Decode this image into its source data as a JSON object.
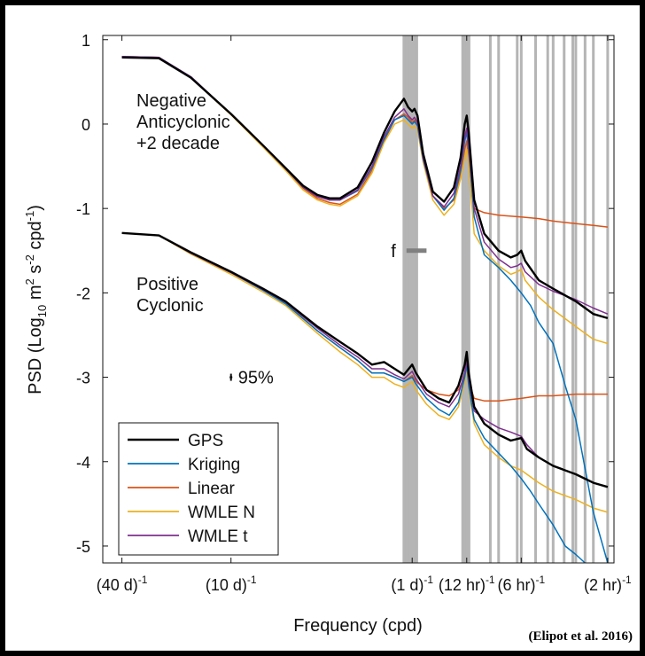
{
  "chart_data": {
    "type": "line",
    "ylabel_parts": {
      "a": "PSD (Log",
      "sub": "10",
      "b": " m",
      "sup1": "2",
      "c": " s",
      "sup2": "-2",
      "d": " cpd",
      "sup3": "-1",
      "e": ")"
    },
    "xlabel": "Frequency (cpd)",
    "credit": "(Elipot et al. 2016)",
    "x_scale": "log",
    "xlim": [
      0.0196,
      13.0
    ],
    "ylim": [
      -5.2,
      1.05
    ],
    "grid": false,
    "legend_placement": "bottom-left",
    "x_ticks": [
      {
        "value": 0.025,
        "label": "(40 d)",
        "sup": "-1"
      },
      {
        "value": 0.1,
        "label": "(10 d)",
        "sup": "-1"
      },
      {
        "value": 1.0,
        "label": "(1 d)",
        "sup": "-1"
      },
      {
        "value": 2.0,
        "label": "(12 hr)",
        "sup": "-1"
      },
      {
        "value": 4.0,
        "label": "(6 hr)",
        "sup": "-1"
      },
      {
        "value": 12.0,
        "label": "(2 hr)",
        "sup": "-1"
      }
    ],
    "y_ticks": [
      {
        "value": 1,
        "label": "1"
      },
      {
        "value": 0,
        "label": "0"
      },
      {
        "value": -1,
        "label": "-1"
      },
      {
        "value": -2,
        "label": "-2"
      },
      {
        "value": -3,
        "label": "-3"
      },
      {
        "value": -4,
        "label": "-4"
      },
      {
        "value": -5,
        "label": "-5"
      }
    ],
    "annotations": {
      "upper_group": [
        "Negative",
        "Anticyclonic",
        "+2 decade"
      ],
      "lower_group": [
        "Positive",
        "Cyclonic"
      ],
      "f_label": "f",
      "f_bar_range": [
        0.93,
        1.2
      ],
      "f_bar_y": -1.5,
      "ci_label": "95%",
      "ci_x": 0.1,
      "ci_y": -3.0
    },
    "tidal_bands": [
      0.9,
      0.92,
      0.93,
      0.95,
      0.97,
      0.99,
      1.0,
      1.03,
      1.06,
      1.9,
      1.93,
      1.96,
      2.0,
      2.03,
      2.06,
      2.7,
      3.0,
      3.8,
      4.0,
      4.8,
      5.6,
      6.0,
      6.9,
      7.7,
      8.0,
      9.0,
      10.0,
      12.0
    ],
    "colors": {
      "GPS": "#000000",
      "Kriging": "#0072BD",
      "Linear": "#D95319",
      "WMLE N": "#EDB120",
      "WMLE t": "#7E2F8E",
      "band": "#b5b5b5",
      "f_bar": "#808080"
    },
    "series": [
      {
        "name": "GPS",
        "group": "upper",
        "x": [
          0.025,
          0.04,
          0.06,
          0.1,
          0.15,
          0.2,
          0.25,
          0.3,
          0.35,
          0.4,
          0.5,
          0.6,
          0.7,
          0.8,
          0.9,
          0.95,
          1.0,
          1.03,
          1.07,
          1.15,
          1.3,
          1.5,
          1.7,
          1.85,
          1.95,
          2.0,
          2.05,
          2.2,
          2.5,
          3.0,
          3.5,
          3.8,
          4.0,
          4.2,
          5.0,
          6.0,
          8.0,
          10.0,
          12.0
        ],
        "y": [
          0.79,
          0.78,
          0.55,
          0.12,
          -0.25,
          -0.52,
          -0.73,
          -0.84,
          -0.88,
          -0.88,
          -0.75,
          -0.45,
          -0.1,
          0.15,
          0.3,
          0.2,
          0.15,
          0.18,
          0.1,
          -0.35,
          -0.8,
          -0.92,
          -0.75,
          -0.4,
          0.0,
          0.1,
          -0.1,
          -0.9,
          -1.3,
          -1.5,
          -1.58,
          -1.55,
          -1.5,
          -1.62,
          -1.85,
          -1.95,
          -2.1,
          -2.25,
          -2.3
        ]
      },
      {
        "name": "Kriging",
        "group": "upper",
        "x": [
          0.025,
          0.04,
          0.06,
          0.1,
          0.15,
          0.2,
          0.25,
          0.3,
          0.35,
          0.4,
          0.5,
          0.6,
          0.7,
          0.8,
          0.9,
          0.95,
          1.0,
          1.03,
          1.07,
          1.15,
          1.3,
          1.5,
          1.7,
          1.85,
          1.95,
          2.0,
          2.05,
          2.2,
          2.5,
          3.0,
          3.5,
          4.0,
          4.5,
          5.0,
          6.0,
          7.0,
          8.0,
          10.0,
          12.0
        ],
        "y": [
          0.8,
          0.79,
          0.56,
          0.12,
          -0.25,
          -0.53,
          -0.75,
          -0.86,
          -0.9,
          -0.9,
          -0.79,
          -0.52,
          -0.18,
          0.05,
          0.1,
          0.05,
          0.0,
          0.03,
          -0.02,
          -0.42,
          -0.85,
          -1.02,
          -0.88,
          -0.55,
          -0.2,
          -0.1,
          -0.3,
          -1.1,
          -1.55,
          -1.7,
          -1.85,
          -2.0,
          -2.15,
          -2.35,
          -2.6,
          -3.1,
          -3.5,
          -4.6,
          -5.2
        ]
      },
      {
        "name": "Linear",
        "group": "upper",
        "x": [
          0.025,
          0.04,
          0.06,
          0.1,
          0.15,
          0.2,
          0.25,
          0.3,
          0.35,
          0.4,
          0.5,
          0.6,
          0.7,
          0.8,
          0.9,
          0.95,
          1.0,
          1.03,
          1.07,
          1.15,
          1.3,
          1.5,
          1.7,
          1.85,
          1.95,
          2.0,
          2.05,
          2.2,
          2.5,
          3.0,
          4.0,
          5.0,
          6.0,
          8.0,
          10.0,
          12.0
        ],
        "y": [
          0.8,
          0.79,
          0.56,
          0.12,
          -0.25,
          -0.53,
          -0.76,
          -0.88,
          -0.93,
          -0.95,
          -0.83,
          -0.55,
          -0.2,
          0.05,
          0.12,
          0.08,
          0.02,
          0.05,
          0.0,
          -0.4,
          -0.85,
          -1.0,
          -0.9,
          -0.6,
          -0.3,
          -0.2,
          -0.4,
          -1.0,
          -1.05,
          -1.08,
          -1.1,
          -1.12,
          -1.15,
          -1.18,
          -1.2,
          -1.22
        ]
      },
      {
        "name": "WMLE N",
        "group": "upper",
        "x": [
          0.025,
          0.04,
          0.06,
          0.1,
          0.15,
          0.2,
          0.25,
          0.3,
          0.35,
          0.4,
          0.5,
          0.6,
          0.7,
          0.8,
          0.9,
          0.95,
          1.0,
          1.03,
          1.07,
          1.15,
          1.3,
          1.5,
          1.7,
          1.85,
          1.95,
          2.0,
          2.05,
          2.2,
          2.5,
          3.0,
          3.5,
          3.8,
          4.0,
          4.2,
          5.0,
          6.0,
          8.0,
          10.0,
          12.0
        ],
        "y": [
          0.8,
          0.79,
          0.55,
          0.11,
          -0.27,
          -0.55,
          -0.78,
          -0.9,
          -0.95,
          -0.97,
          -0.85,
          -0.58,
          -0.22,
          0.0,
          0.05,
          0.0,
          -0.05,
          -0.02,
          -0.07,
          -0.45,
          -0.9,
          -1.08,
          -0.95,
          -0.65,
          -0.4,
          -0.3,
          -0.5,
          -1.3,
          -1.5,
          -1.68,
          -1.78,
          -1.75,
          -1.72,
          -1.85,
          -2.05,
          -2.2,
          -2.4,
          -2.55,
          -2.6
        ]
      },
      {
        "name": "WMLE t",
        "group": "upper",
        "x": [
          0.025,
          0.04,
          0.06,
          0.1,
          0.15,
          0.2,
          0.25,
          0.3,
          0.35,
          0.4,
          0.5,
          0.6,
          0.7,
          0.8,
          0.9,
          0.95,
          1.0,
          1.03,
          1.07,
          1.15,
          1.3,
          1.5,
          1.7,
          1.85,
          1.95,
          2.0,
          2.05,
          2.2,
          2.5,
          3.0,
          3.5,
          3.8,
          4.0,
          4.2,
          5.0,
          6.0,
          8.0,
          10.0,
          12.0
        ],
        "y": [
          0.8,
          0.79,
          0.56,
          0.12,
          -0.25,
          -0.53,
          -0.75,
          -0.86,
          -0.9,
          -0.9,
          -0.78,
          -0.5,
          -0.15,
          0.08,
          0.18,
          0.1,
          0.05,
          0.08,
          0.02,
          -0.4,
          -0.85,
          -0.98,
          -0.82,
          -0.5,
          -0.15,
          -0.05,
          -0.25,
          -1.0,
          -1.4,
          -1.6,
          -1.7,
          -1.68,
          -1.65,
          -1.75,
          -1.9,
          -1.98,
          -2.08,
          -2.18,
          -2.25
        ]
      },
      {
        "name": "GPS",
        "group": "lower",
        "x": [
          0.025,
          0.04,
          0.06,
          0.1,
          0.15,
          0.2,
          0.3,
          0.4,
          0.5,
          0.6,
          0.7,
          0.8,
          0.9,
          1.0,
          1.05,
          1.2,
          1.4,
          1.6,
          1.8,
          1.95,
          2.0,
          2.05,
          2.2,
          2.5,
          3.0,
          3.5,
          4.0,
          4.3,
          5.0,
          6.0,
          8.0,
          10.0,
          12.0
        ],
        "y": [
          -1.29,
          -1.32,
          -1.52,
          -1.75,
          -1.95,
          -2.1,
          -2.4,
          -2.58,
          -2.72,
          -2.85,
          -2.82,
          -2.9,
          -2.97,
          -2.85,
          -2.95,
          -3.15,
          -3.25,
          -3.3,
          -3.1,
          -2.85,
          -2.7,
          -2.95,
          -3.35,
          -3.55,
          -3.68,
          -3.75,
          -3.72,
          -3.85,
          -3.95,
          -4.05,
          -4.15,
          -4.25,
          -4.3
        ]
      },
      {
        "name": "Kriging",
        "group": "lower",
        "x": [
          0.025,
          0.04,
          0.06,
          0.1,
          0.15,
          0.2,
          0.3,
          0.4,
          0.5,
          0.6,
          0.7,
          0.8,
          0.9,
          1.0,
          1.05,
          1.2,
          1.4,
          1.6,
          1.8,
          1.95,
          2.0,
          2.05,
          2.2,
          2.5,
          3.0,
          3.5,
          4.0,
          4.5,
          5.0,
          6.0,
          7.0,
          8.0,
          9.0
        ],
        "y": [
          -1.29,
          -1.32,
          -1.53,
          -1.76,
          -1.97,
          -2.13,
          -2.45,
          -2.65,
          -2.8,
          -2.95,
          -2.95,
          -3.0,
          -3.05,
          -3.0,
          -3.08,
          -3.25,
          -3.38,
          -3.45,
          -3.3,
          -3.0,
          -2.85,
          -3.1,
          -3.5,
          -3.72,
          -3.9,
          -4.05,
          -4.2,
          -4.35,
          -4.5,
          -4.75,
          -5.0,
          -5.1,
          -5.2
        ]
      },
      {
        "name": "Linear",
        "group": "lower",
        "x": [
          0.025,
          0.04,
          0.06,
          0.1,
          0.15,
          0.2,
          0.3,
          0.4,
          0.5,
          0.6,
          0.7,
          0.8,
          0.9,
          1.0,
          1.05,
          1.2,
          1.4,
          1.6,
          1.8,
          1.95,
          2.0,
          2.05,
          2.2,
          2.5,
          3.0,
          4.0,
          5.0,
          6.0,
          8.0,
          10.0,
          12.0
        ],
        "y": [
          -1.29,
          -1.32,
          -1.53,
          -1.76,
          -1.96,
          -2.12,
          -2.45,
          -2.65,
          -2.8,
          -2.95,
          -2.95,
          -3.0,
          -3.05,
          -2.98,
          -3.05,
          -3.15,
          -3.2,
          -3.22,
          -3.15,
          -3.0,
          -2.9,
          -3.05,
          -3.25,
          -3.28,
          -3.28,
          -3.25,
          -3.22,
          -3.22,
          -3.2,
          -3.2,
          -3.2
        ]
      },
      {
        "name": "WMLE N",
        "group": "lower",
        "x": [
          0.025,
          0.04,
          0.06,
          0.1,
          0.15,
          0.2,
          0.3,
          0.4,
          0.5,
          0.6,
          0.7,
          0.8,
          0.9,
          1.0,
          1.05,
          1.2,
          1.4,
          1.6,
          1.8,
          1.95,
          2.0,
          2.05,
          2.2,
          2.5,
          3.0,
          3.5,
          4.0,
          4.3,
          5.0,
          6.0,
          8.0,
          10.0,
          12.0
        ],
        "y": [
          -1.29,
          -1.32,
          -1.54,
          -1.78,
          -1.99,
          -2.15,
          -2.48,
          -2.7,
          -2.85,
          -3.0,
          -3.0,
          -3.08,
          -3.12,
          -3.05,
          -3.15,
          -3.32,
          -3.45,
          -3.5,
          -3.35,
          -3.05,
          -2.9,
          -3.15,
          -3.55,
          -3.8,
          -3.95,
          -4.05,
          -4.1,
          -4.15,
          -4.25,
          -4.35,
          -4.45,
          -4.55,
          -4.6
        ]
      },
      {
        "name": "WMLE t",
        "group": "lower",
        "x": [
          0.025,
          0.04,
          0.06,
          0.1,
          0.15,
          0.2,
          0.3,
          0.4,
          0.5,
          0.6,
          0.7,
          0.8,
          0.9,
          1.0,
          1.05,
          1.2,
          1.4,
          1.6,
          1.8,
          1.95,
          2.0,
          2.05,
          2.2,
          2.5,
          3.0,
          3.5,
          4.0,
          4.3,
          5.0,
          6.0,
          8.0,
          10.0,
          12.0
        ],
        "y": [
          -1.29,
          -1.32,
          -1.53,
          -1.76,
          -1.96,
          -2.11,
          -2.42,
          -2.62,
          -2.76,
          -2.9,
          -2.9,
          -2.97,
          -3.02,
          -2.93,
          -3.02,
          -3.2,
          -3.3,
          -3.35,
          -3.2,
          -2.95,
          -2.8,
          -3.02,
          -3.4,
          -3.5,
          -3.6,
          -3.65,
          -3.7,
          -3.8,
          -3.95,
          -4.05,
          -4.15,
          -4.25,
          -4.3
        ]
      }
    ],
    "legend": [
      "GPS",
      "Kriging",
      "Linear",
      "WMLE N",
      "WMLE t"
    ]
  }
}
